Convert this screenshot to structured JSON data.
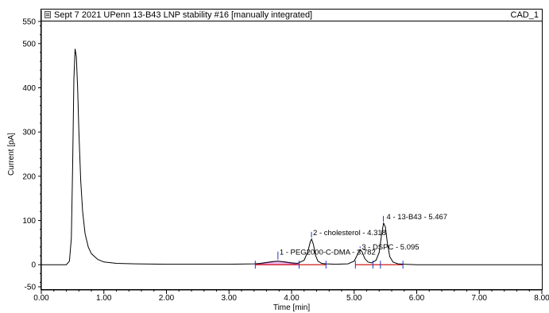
{
  "window": {
    "title": "Sept 7 2021 UPenn 13-B43 LNP stability #16 [manually integrated]",
    "channel": "CAD_1"
  },
  "chart_data": {
    "type": "line",
    "xlabel": "Time [min]",
    "ylabel": "Current [pA]",
    "xlim": [
      0.0,
      8.0
    ],
    "ylim": [
      -50,
      550
    ],
    "x_ticks": [
      "0.00",
      "1.00",
      "2.00",
      "3.00",
      "4.00",
      "5.00",
      "6.00",
      "7.00",
      "8.00"
    ],
    "y_ticks": [
      "550",
      "500",
      "400",
      "300",
      "200",
      "100",
      "0",
      "-50"
    ],
    "grid": false,
    "peaks": [
      {
        "label": "1 - PEG2000-C-DMA - 3.782",
        "rt": 3.782
      },
      {
        "label": "2 - cholesterol - 4.318",
        "rt": 4.318
      },
      {
        "label": "3 - DSPC - 5.095",
        "rt": 5.095
      },
      {
        "label": "4 - 13-B43 - 5.467",
        "rt": 5.467
      }
    ],
    "series": [
      {
        "color": "#000000",
        "x": [
          0.0,
          0.4,
          0.45,
          0.48,
          0.5,
          0.52,
          0.54,
          0.56,
          0.58,
          0.6,
          0.63,
          0.66,
          0.7,
          0.75,
          0.8,
          0.9,
          1.0,
          1.2,
          1.5,
          2.0,
          3.0,
          3.4,
          3.5,
          3.6,
          3.7,
          3.78,
          3.9,
          4.0,
          4.1,
          4.2,
          4.26,
          4.3,
          4.32,
          4.35,
          4.38,
          4.42,
          4.48,
          4.55,
          4.7,
          4.9,
          5.0,
          5.05,
          5.08,
          5.1,
          5.13,
          5.17,
          5.22,
          5.28,
          5.35,
          5.4,
          5.44,
          5.47,
          5.5,
          5.53,
          5.57,
          5.62,
          5.7,
          5.8,
          6.0,
          7.0,
          8.0
        ],
        "y": [
          0,
          0,
          8,
          60,
          220,
          420,
          488,
          470,
          400,
          300,
          190,
          120,
          70,
          40,
          25,
          12,
          6,
          3,
          2,
          1,
          1,
          2,
          3,
          5,
          7,
          8,
          6,
          4,
          3,
          10,
          30,
          52,
          58,
          45,
          22,
          8,
          3,
          2,
          1,
          2,
          8,
          22,
          32,
          34,
          28,
          14,
          6,
          4,
          10,
          28,
          70,
          94,
          85,
          50,
          18,
          6,
          2,
          1,
          0,
          0,
          0
        ]
      }
    ],
    "baselines": [
      {
        "color": "#cc0000",
        "x": [
          3.42,
          4.12
        ],
        "y": [
          0,
          0
        ]
      },
      {
        "color": "#cc0000",
        "x": [
          4.12,
          4.55
        ],
        "y": [
          0,
          0
        ]
      },
      {
        "color": "#cc0000",
        "x": [
          5.02,
          5.3
        ],
        "y": [
          0,
          0
        ]
      },
      {
        "color": "#cc0000",
        "x": [
          5.3,
          5.78
        ],
        "y": [
          0,
          0
        ]
      }
    ],
    "fill_peaks": [
      {
        "color": "#cc44cc",
        "x": [
          3.42,
          3.6,
          3.78,
          3.95,
          4.12
        ],
        "y": [
          0,
          4,
          8,
          4,
          0
        ]
      }
    ],
    "integration_markers_rt": [
      3.42,
      4.12,
      4.55,
      5.02,
      5.3,
      5.42,
      5.78
    ]
  }
}
